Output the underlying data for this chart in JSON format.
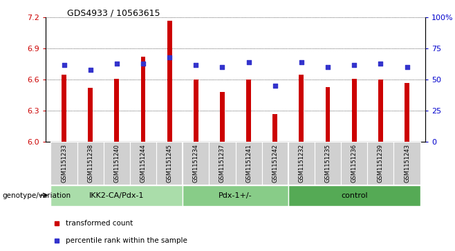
{
  "title": "GDS4933 / 10563615",
  "samples": [
    "GSM1151233",
    "GSM1151238",
    "GSM1151240",
    "GSM1151244",
    "GSM1151245",
    "GSM1151234",
    "GSM1151237",
    "GSM1151241",
    "GSM1151242",
    "GSM1151232",
    "GSM1151235",
    "GSM1151236",
    "GSM1151239",
    "GSM1151243"
  ],
  "bar_values": [
    6.65,
    6.52,
    6.61,
    6.82,
    7.17,
    6.6,
    6.48,
    6.6,
    6.27,
    6.65,
    6.53,
    6.61,
    6.6,
    6.57
  ],
  "percentile_values": [
    62,
    58,
    63,
    63,
    68,
    62,
    60,
    64,
    45,
    64,
    60,
    62,
    63,
    60
  ],
  "bar_color": "#cc0000",
  "dot_color": "#3333cc",
  "ylim_left": [
    6.0,
    7.2
  ],
  "ylim_right": [
    0,
    100
  ],
  "yticks_left": [
    6.0,
    6.3,
    6.6,
    6.9,
    7.2
  ],
  "yticks_right": [
    0,
    25,
    50,
    75,
    100
  ],
  "ytick_labels_right": [
    "0",
    "25",
    "50",
    "75",
    "100%"
  ],
  "groups": [
    {
      "label": "IKK2-CA/Pdx-1",
      "start": 0,
      "end": 4
    },
    {
      "label": "Pdx-1+/-",
      "start": 5,
      "end": 8
    },
    {
      "label": "control",
      "start": 9,
      "end": 13
    }
  ],
  "group_colors": [
    "#aaddaa",
    "#88cc88",
    "#55aa55"
  ],
  "xlabel_left": "genotype/variation",
  "legend_red": "transformed count",
  "legend_blue": "percentile rank within the sample",
  "bar_width": 0.18,
  "baseline": 6.0,
  "xtick_bg": "#cccccc",
  "plot_bg": "#ffffff",
  "title_fontsize": 9,
  "tick_fontsize": 7,
  "group_fontsize": 8
}
